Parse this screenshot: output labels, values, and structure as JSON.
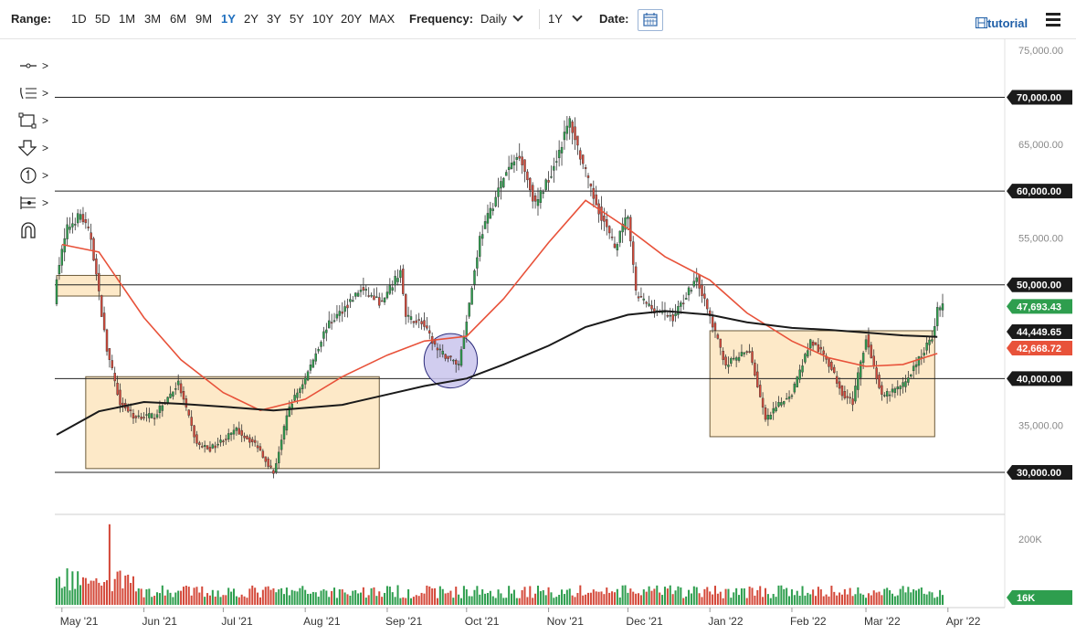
{
  "toolbar": {
    "range_label": "Range:",
    "ranges": [
      "1D",
      "5D",
      "1M",
      "3M",
      "6M",
      "9M",
      "1Y",
      "2Y",
      "3Y",
      "5Y",
      "10Y",
      "20Y",
      "MAX"
    ],
    "active_range": "1Y",
    "frequency_label": "Frequency:",
    "frequency_value": "Daily",
    "period_value": "1Y",
    "date_label": "Date:",
    "tutorial_label": "tutorial",
    "icons": [
      "calendar-icon",
      "menu-icon",
      "film-icon"
    ]
  },
  "drawing_tools": [
    "line-tool-icon",
    "fib-tool-icon",
    "rectangle-tool-icon",
    "arrow-tool-icon",
    "counter-tool-icon",
    "measure-tool-icon",
    "magnet-tool-icon"
  ],
  "colors": {
    "up": "#2e9e4e",
    "down": "#d4493a",
    "ma50": "#e8523a",
    "ma200": "#1a1a1a",
    "zone": "#fde9c8",
    "ellipse": "#c9c4ec",
    "accent": "#1f6fbf"
  },
  "chart_data": {
    "type": "candlestick",
    "title": "",
    "price_axis": {
      "ticks": [
        "75,000.00",
        "70,000.00",
        "65,000.00",
        "60,000.00",
        "55,000.00",
        "50,000.00",
        "45,000.00",
        "40,000.00",
        "35,000.00",
        "30,000.00"
      ],
      "range": [
        26000,
        75500
      ]
    },
    "volume_axis": {
      "tick_label": "200K",
      "current_label": "16K",
      "current_value": 16000
    },
    "time_axis": [
      "May '21",
      "Jun '21",
      "Jul '21",
      "Aug '21",
      "Sep '21",
      "Oct '21",
      "Nov '21",
      "Dec '21",
      "Jan '22",
      "Feb '22",
      "Mar '22",
      "Apr '22"
    ],
    "horizontal_levels": [
      {
        "value": 70000,
        "label": "70,000.00"
      },
      {
        "value": 60000,
        "label": "60,000.00"
      },
      {
        "value": 50000,
        "label": "50,000.00"
      },
      {
        "value": 40000,
        "label": "40,000.00"
      },
      {
        "value": 30000,
        "label": "30,000.00"
      }
    ],
    "price_flags": [
      {
        "name": "last-price",
        "value": 47693.43,
        "label": "47,693.43",
        "color": "#2e9e4e"
      },
      {
        "name": "ma200",
        "value": 44449.65,
        "label": "44,449.65",
        "color": "#1a1a1a"
      },
      {
        "name": "ma50",
        "value": 42668.72,
        "label": "42,668.72",
        "color": "#e8523a"
      }
    ],
    "zones": [
      {
        "start": "2021-04-29",
        "end": "2021-05-23",
        "low": 48800,
        "high": 51000
      },
      {
        "start": "2021-05-10",
        "end": "2021-08-29",
        "low": 30400,
        "high": 40200
      },
      {
        "start": "2022-01-01",
        "end": "2022-03-27",
        "low": 33800,
        "high": 45100
      }
    ],
    "ellipse": {
      "start": "2021-09-17",
      "end": "2021-10-03",
      "low": 39000,
      "high": 44800
    },
    "ma_series": [
      {
        "name": "50-day MA",
        "color": "#e8523a",
        "points": [
          [
            "2021-05-01",
            54300
          ],
          [
            "2021-05-15",
            53500
          ],
          [
            "2021-06-01",
            46500
          ],
          [
            "2021-06-15",
            42000
          ],
          [
            "2021-07-01",
            38500
          ],
          [
            "2021-07-15",
            36600
          ],
          [
            "2021-08-01",
            37800
          ],
          [
            "2021-08-15",
            40200
          ],
          [
            "2021-09-01",
            42500
          ],
          [
            "2021-09-15",
            44000
          ],
          [
            "2021-10-01",
            44500
          ],
          [
            "2021-10-15",
            48500
          ],
          [
            "2021-11-01",
            54500
          ],
          [
            "2021-11-15",
            59000
          ],
          [
            "2021-12-01",
            56000
          ],
          [
            "2021-12-15",
            53000
          ],
          [
            "2022-01-01",
            50500
          ],
          [
            "2022-01-15",
            47000
          ],
          [
            "2022-02-01",
            44000
          ],
          [
            "2022-02-15",
            42200
          ],
          [
            "2022-03-01",
            41300
          ],
          [
            "2022-03-15",
            41500
          ],
          [
            "2022-03-28",
            42668
          ]
        ]
      },
      {
        "name": "200-day MA",
        "color": "#1a1a1a",
        "points": [
          [
            "2021-04-29",
            34000
          ],
          [
            "2021-05-15",
            36500
          ],
          [
            "2021-06-01",
            37500
          ],
          [
            "2021-06-15",
            37300
          ],
          [
            "2021-07-01",
            37000
          ],
          [
            "2021-07-20",
            36600
          ],
          [
            "2021-08-15",
            37200
          ],
          [
            "2021-09-01",
            38300
          ],
          [
            "2021-09-15",
            39200
          ],
          [
            "2021-10-01",
            40000
          ],
          [
            "2021-10-15",
            41500
          ],
          [
            "2021-11-01",
            43500
          ],
          [
            "2021-11-15",
            45500
          ],
          [
            "2021-12-01",
            46800
          ],
          [
            "2021-12-15",
            47200
          ],
          [
            "2022-01-01",
            46800
          ],
          [
            "2022-01-15",
            46000
          ],
          [
            "2022-02-01",
            45400
          ],
          [
            "2022-02-15",
            45200
          ],
          [
            "2022-03-01",
            44900
          ],
          [
            "2022-03-15",
            44600
          ],
          [
            "2022-03-28",
            44450
          ]
        ]
      }
    ],
    "price_anchors": [
      [
        "2021-04-29",
        51000
      ],
      [
        "2021-05-03",
        56000
      ],
      [
        "2021-05-08",
        57500
      ],
      [
        "2021-05-12",
        55000
      ],
      [
        "2021-05-18",
        43000
      ],
      [
        "2021-05-23",
        37500
      ],
      [
        "2021-05-28",
        36000
      ],
      [
        "2021-06-05",
        36000
      ],
      [
        "2021-06-14",
        39500
      ],
      [
        "2021-06-21",
        33000
      ],
      [
        "2021-06-26",
        32500
      ],
      [
        "2021-07-06",
        34500
      ],
      [
        "2021-07-14",
        32800
      ],
      [
        "2021-07-20",
        29900
      ],
      [
        "2021-07-26",
        37000
      ],
      [
        "2021-08-01",
        40000
      ],
      [
        "2021-08-09",
        45500
      ],
      [
        "2021-08-14",
        47000
      ],
      [
        "2021-08-22",
        49500
      ],
      [
        "2021-08-30",
        48000
      ],
      [
        "2021-09-06",
        51500
      ],
      [
        "2021-09-08",
        46500
      ],
      [
        "2021-09-14",
        46000
      ],
      [
        "2021-09-20",
        43000
      ],
      [
        "2021-09-28",
        41500
      ],
      [
        "2021-10-02",
        48000
      ],
      [
        "2021-10-06",
        55000
      ],
      [
        "2021-10-15",
        61500
      ],
      [
        "2021-10-21",
        64000
      ],
      [
        "2021-10-27",
        58500
      ],
      [
        "2021-11-02",
        62000
      ],
      [
        "2021-11-09",
        67500
      ],
      [
        "2021-11-17",
        60000
      ],
      [
        "2021-11-26",
        54000
      ],
      [
        "2021-12-01",
        57500
      ],
      [
        "2021-12-04",
        49000
      ],
      [
        "2021-12-10",
        47500
      ],
      [
        "2021-12-18",
        46500
      ],
      [
        "2021-12-27",
        50800
      ],
      [
        "2022-01-01",
        46500
      ],
      [
        "2022-01-07",
        41500
      ],
      [
        "2022-01-16",
        43000
      ],
      [
        "2022-01-22",
        35500
      ],
      [
        "2022-01-28",
        37500
      ],
      [
        "2022-02-01",
        38500
      ],
      [
        "2022-02-08",
        44000
      ],
      [
        "2022-02-14",
        42200
      ],
      [
        "2022-02-20",
        38500
      ],
      [
        "2022-02-24",
        37500
      ],
      [
        "2022-03-01",
        44500
      ],
      [
        "2022-03-07",
        38000
      ],
      [
        "2022-03-15",
        39300
      ],
      [
        "2022-03-22",
        42500
      ],
      [
        "2022-03-26",
        44500
      ],
      [
        "2022-03-28",
        47300
      ],
      [
        "2022-03-30",
        47693
      ]
    ],
    "volume_spike": {
      "date": "2021-05-19",
      "value": 245000
    }
  }
}
